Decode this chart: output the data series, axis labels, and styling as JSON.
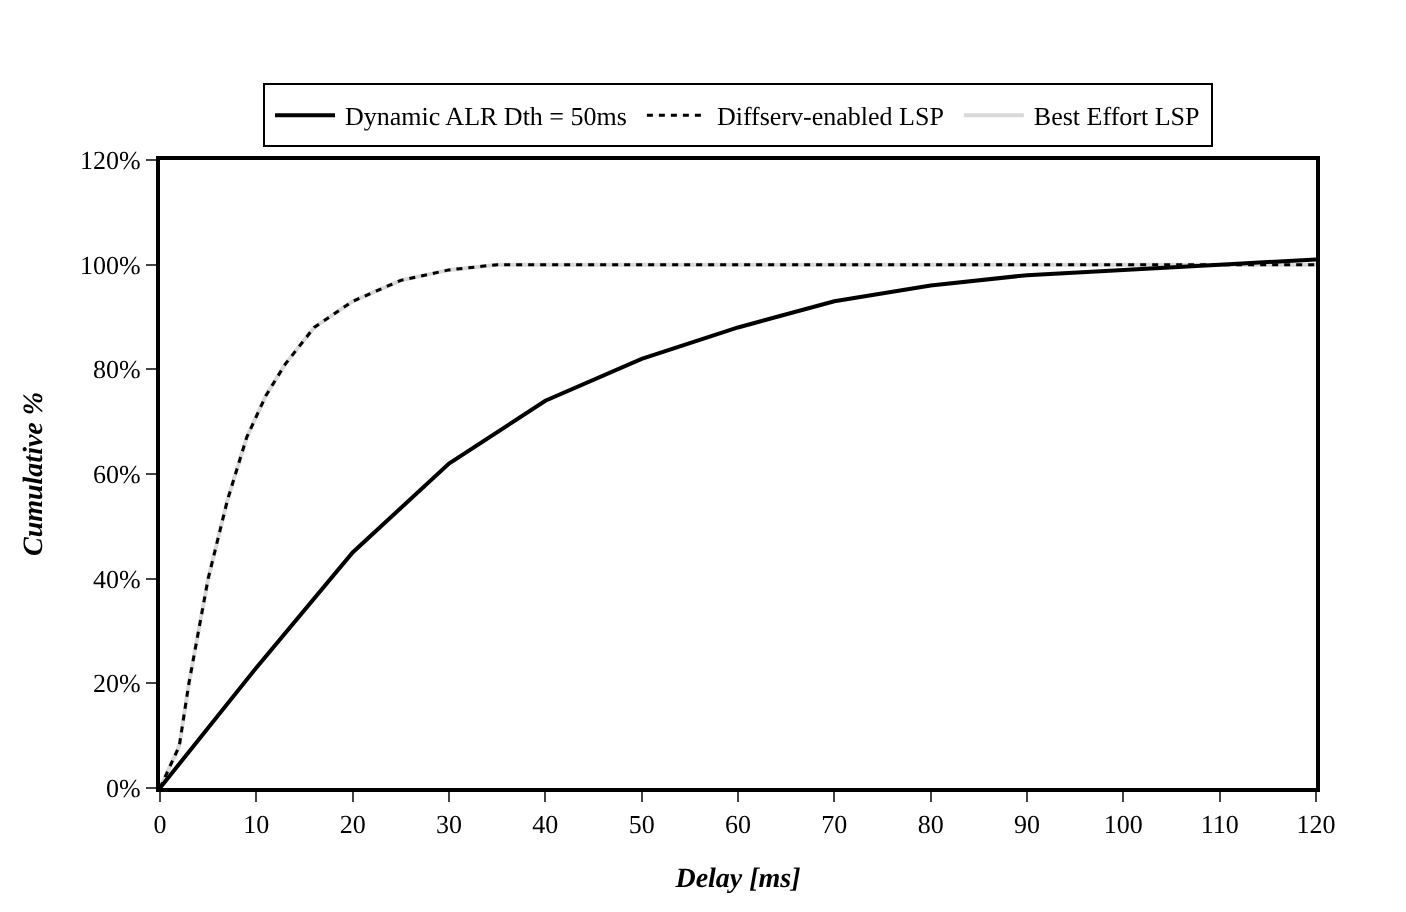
{
  "chart_data": {
    "type": "line",
    "xlabel": "Delay [ms]",
    "ylabel": "Cumulative %",
    "xlim": [
      0,
      120
    ],
    "xticks": [
      0,
      10,
      20,
      30,
      40,
      50,
      60,
      70,
      80,
      90,
      100,
      110,
      120
    ],
    "ylim": [
      0,
      120
    ],
    "yticks": [
      {
        "value": 0,
        "label": "0%"
      },
      {
        "value": 20,
        "label": "20%"
      },
      {
        "value": 40,
        "label": "40%"
      },
      {
        "value": 60,
        "label": "60%"
      },
      {
        "value": 80,
        "label": "80%"
      },
      {
        "value": 100,
        "label": "100%"
      },
      {
        "value": 120,
        "label": "120%"
      }
    ],
    "legend": "top",
    "marker": "none",
    "series": [
      {
        "name": "Dynamic ALR Dth = 50ms",
        "color": "#000000",
        "line_style": "solid",
        "x": [
          0,
          10,
          20,
          30,
          40,
          50,
          60,
          70,
          80,
          90,
          100,
          110,
          120
        ],
        "values": [
          0,
          23,
          45,
          62,
          74,
          82,
          88,
          93,
          96,
          98,
          99,
          100,
          101
        ]
      },
      {
        "name": "Diffserv-enabled LSP",
        "color": "#000000",
        "line_style": "dotted",
        "x": [
          0,
          2,
          3,
          5,
          7,
          9,
          11,
          13,
          16,
          20,
          25,
          30,
          35,
          60,
          90,
          120
        ],
        "values": [
          0,
          8,
          20,
          40,
          55,
          67,
          75,
          81,
          88,
          93,
          97,
          99,
          100,
          100,
          100,
          100
        ]
      },
      {
        "name": "Best Effort LSP",
        "color": "#d9d9d9",
        "line_style": "solid",
        "x": [
          0,
          2,
          3,
          5,
          7,
          9,
          11,
          13,
          16,
          20,
          25,
          30,
          35,
          120
        ],
        "values": [
          0,
          8,
          20,
          40,
          55,
          67,
          75,
          81,
          88,
          93,
          97,
          99,
          100,
          100
        ]
      }
    ]
  }
}
